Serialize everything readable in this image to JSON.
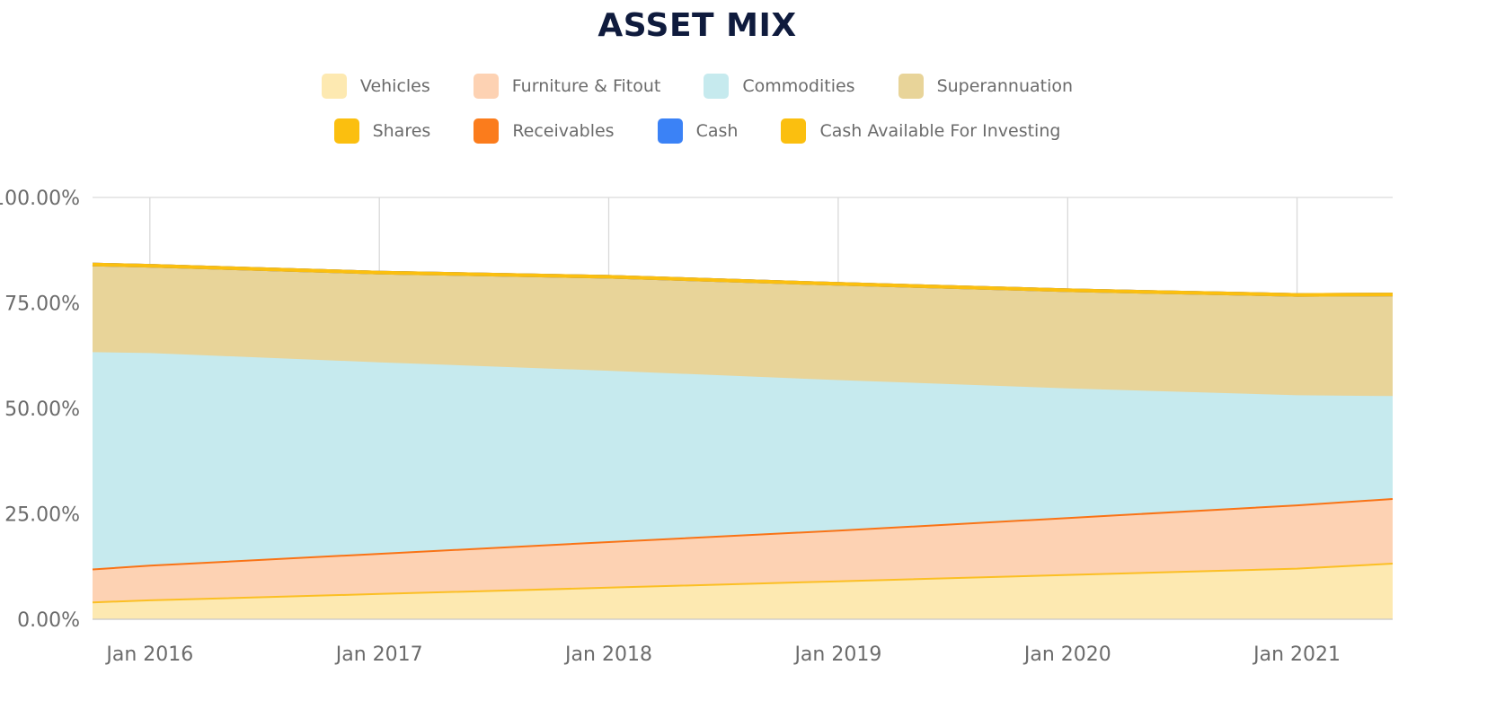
{
  "chart_data": {
    "type": "area",
    "title": "ASSET MIX",
    "x": [
      "Oct 2015",
      "Jan 2016",
      "Jan 2017",
      "Jan 2018",
      "Jan 2019",
      "Jan 2020",
      "Jan 2021",
      "Jun 2021"
    ],
    "x_tick_labels": [
      "Jan 2016",
      "Jan 2017",
      "Jan 2018",
      "Jan 2019",
      "Jan 2020",
      "Jan 2021"
    ],
    "y_tick_labels": [
      "100.00%",
      "75.00%",
      "50.00%",
      "25.00%",
      "0.00%"
    ],
    "ylim": [
      0,
      100
    ],
    "stacked": true,
    "grid": "vertical",
    "legend_position": "top-center",
    "series": [
      {
        "name": "Vehicles",
        "color": "#fde9b1",
        "line_color": "#fbbf24",
        "values": [
          4.0,
          4.5,
          6.0,
          7.5,
          9.0,
          10.5,
          12.0,
          13.2
        ]
      },
      {
        "name": "Furniture & Fitout",
        "color": "#fdd2b3",
        "line_color": "#f97316",
        "values": [
          7.8,
          8.2,
          9.5,
          10.8,
          12.0,
          13.5,
          15.0,
          15.3
        ]
      },
      {
        "name": "Commodities",
        "color": "#c6eaee",
        "line_color": "#c6eaee",
        "values": [
          51.3,
          50.2,
          45.2,
          40.4,
          35.5,
          30.5,
          25.9,
          24.2
        ]
      },
      {
        "name": "Superannuation",
        "color": "#e8d499",
        "line_color": "#e8d499",
        "values": [
          21.0,
          20.9,
          21.5,
          22.5,
          23.0,
          23.5,
          24.0,
          24.3
        ]
      },
      {
        "name": "Shares",
        "color": "#fbbf0f",
        "line_color": "#fbbf0f",
        "values": [
          0,
          0,
          0,
          0,
          0,
          0,
          0,
          0
        ]
      },
      {
        "name": "Receivables",
        "color": "#fb7c1c",
        "line_color": "#fb7c1c",
        "values": [
          0,
          0,
          0,
          0,
          0,
          0,
          0,
          0
        ]
      },
      {
        "name": "Cash",
        "color": "#3b82f6",
        "line_color": "#3b82f6",
        "values": [
          0,
          0,
          0,
          0,
          0,
          0,
          0,
          0
        ]
      },
      {
        "name": "Cash Available For Investing",
        "color": "#fbbf0f",
        "line_color": "#fbbf0f",
        "values": [
          0,
          0,
          0,
          0,
          0,
          0,
          0,
          0
        ]
      }
    ]
  }
}
